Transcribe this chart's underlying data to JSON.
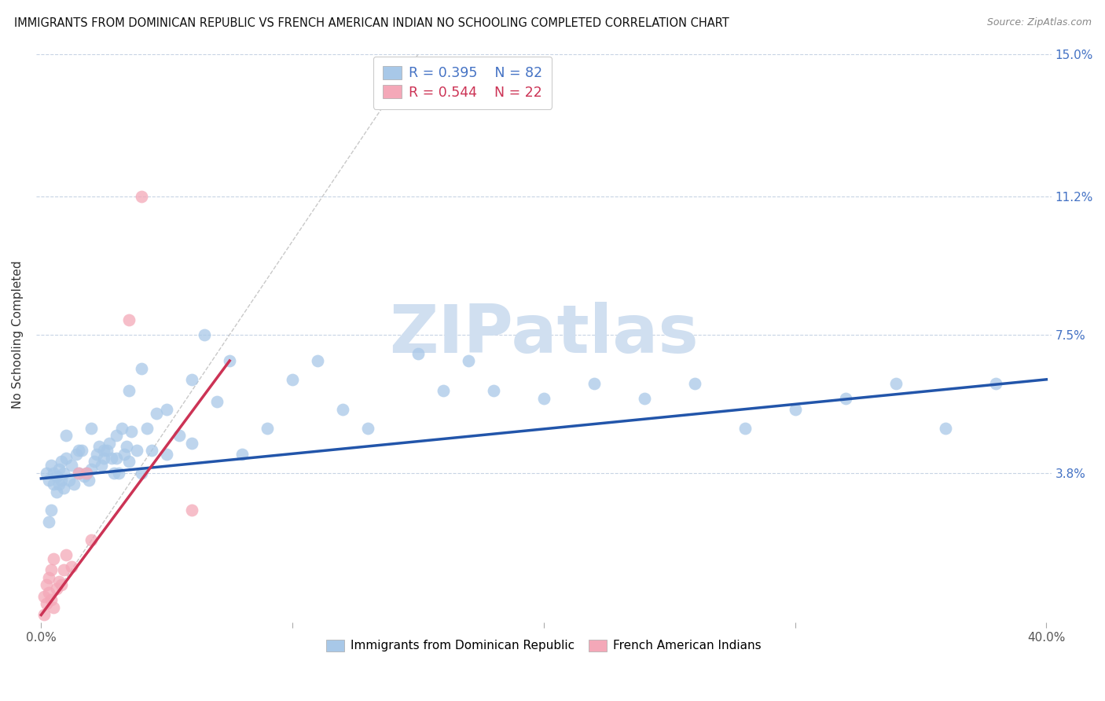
{
  "title": "IMMIGRANTS FROM DOMINICAN REPUBLIC VS FRENCH AMERICAN INDIAN NO SCHOOLING COMPLETED CORRELATION CHART",
  "source": "Source: ZipAtlas.com",
  "ylabel": "No Schooling Completed",
  "blue_R": 0.395,
  "blue_N": 82,
  "pink_R": 0.544,
  "pink_N": 22,
  "blue_color": "#a8c8e8",
  "pink_color": "#f4a8b8",
  "blue_line_color": "#2255aa",
  "pink_line_color": "#cc3355",
  "diagonal_color": "#bbbbbb",
  "watermark": "ZIPatlas",
  "watermark_color": "#d0dff0",
  "xlim": [
    0.0,
    0.4
  ],
  "ylim": [
    0.0,
    0.15
  ],
  "ytick_vals": [
    0.0,
    0.038,
    0.075,
    0.112,
    0.15
  ],
  "ytick_labels": [
    "",
    "3.8%",
    "7.5%",
    "11.2%",
    "15.0%"
  ],
  "xtick_vals": [
    0.0,
    0.1,
    0.2,
    0.3,
    0.4
  ],
  "xtick_labels": [
    "0.0%",
    "",
    "",
    "",
    "40.0%"
  ],
  "blue_line_x0": 0.0,
  "blue_line_y0": 0.0365,
  "blue_line_x1": 0.4,
  "blue_line_y1": 0.063,
  "pink_line_x0": 0.0,
  "pink_line_y0": 0.0,
  "pink_line_x1": 0.075,
  "pink_line_y1": 0.068,
  "blue_scatter_x": [
    0.002,
    0.003,
    0.004,
    0.005,
    0.005,
    0.006,
    0.006,
    0.007,
    0.007,
    0.008,
    0.008,
    0.009,
    0.009,
    0.01,
    0.011,
    0.012,
    0.013,
    0.014,
    0.015,
    0.016,
    0.017,
    0.018,
    0.019,
    0.02,
    0.021,
    0.022,
    0.023,
    0.024,
    0.025,
    0.026,
    0.027,
    0.028,
    0.029,
    0.03,
    0.031,
    0.032,
    0.033,
    0.034,
    0.035,
    0.036,
    0.038,
    0.04,
    0.042,
    0.044,
    0.046,
    0.05,
    0.055,
    0.06,
    0.065,
    0.07,
    0.075,
    0.08,
    0.09,
    0.1,
    0.11,
    0.12,
    0.13,
    0.15,
    0.16,
    0.17,
    0.18,
    0.2,
    0.22,
    0.24,
    0.26,
    0.28,
    0.3,
    0.32,
    0.34,
    0.36,
    0.38,
    0.01,
    0.015,
    0.02,
    0.025,
    0.03,
    0.035,
    0.04,
    0.05,
    0.06,
    0.003,
    0.004
  ],
  "blue_scatter_y": [
    0.038,
    0.036,
    0.04,
    0.035,
    0.038,
    0.033,
    0.037,
    0.039,
    0.035,
    0.041,
    0.036,
    0.038,
    0.034,
    0.042,
    0.036,
    0.04,
    0.035,
    0.043,
    0.038,
    0.044,
    0.037,
    0.038,
    0.036,
    0.039,
    0.041,
    0.043,
    0.045,
    0.04,
    0.042,
    0.044,
    0.046,
    0.042,
    0.038,
    0.042,
    0.038,
    0.05,
    0.043,
    0.045,
    0.041,
    0.049,
    0.044,
    0.038,
    0.05,
    0.044,
    0.054,
    0.055,
    0.048,
    0.063,
    0.075,
    0.057,
    0.068,
    0.043,
    0.05,
    0.063,
    0.068,
    0.055,
    0.05,
    0.07,
    0.06,
    0.068,
    0.06,
    0.058,
    0.062,
    0.058,
    0.062,
    0.05,
    0.055,
    0.058,
    0.062,
    0.05,
    0.062,
    0.048,
    0.044,
    0.05,
    0.044,
    0.048,
    0.06,
    0.066,
    0.043,
    0.046,
    0.025,
    0.028
  ],
  "pink_scatter_x": [
    0.001,
    0.001,
    0.002,
    0.002,
    0.003,
    0.003,
    0.004,
    0.004,
    0.005,
    0.005,
    0.006,
    0.007,
    0.008,
    0.009,
    0.01,
    0.012,
    0.015,
    0.018,
    0.02,
    0.04,
    0.035,
    0.06
  ],
  "pink_scatter_y": [
    0.0,
    0.005,
    0.003,
    0.008,
    0.006,
    0.01,
    0.004,
    0.012,
    0.002,
    0.015,
    0.007,
    0.009,
    0.008,
    0.012,
    0.016,
    0.013,
    0.038,
    0.038,
    0.02,
    0.112,
    0.079,
    0.028
  ]
}
